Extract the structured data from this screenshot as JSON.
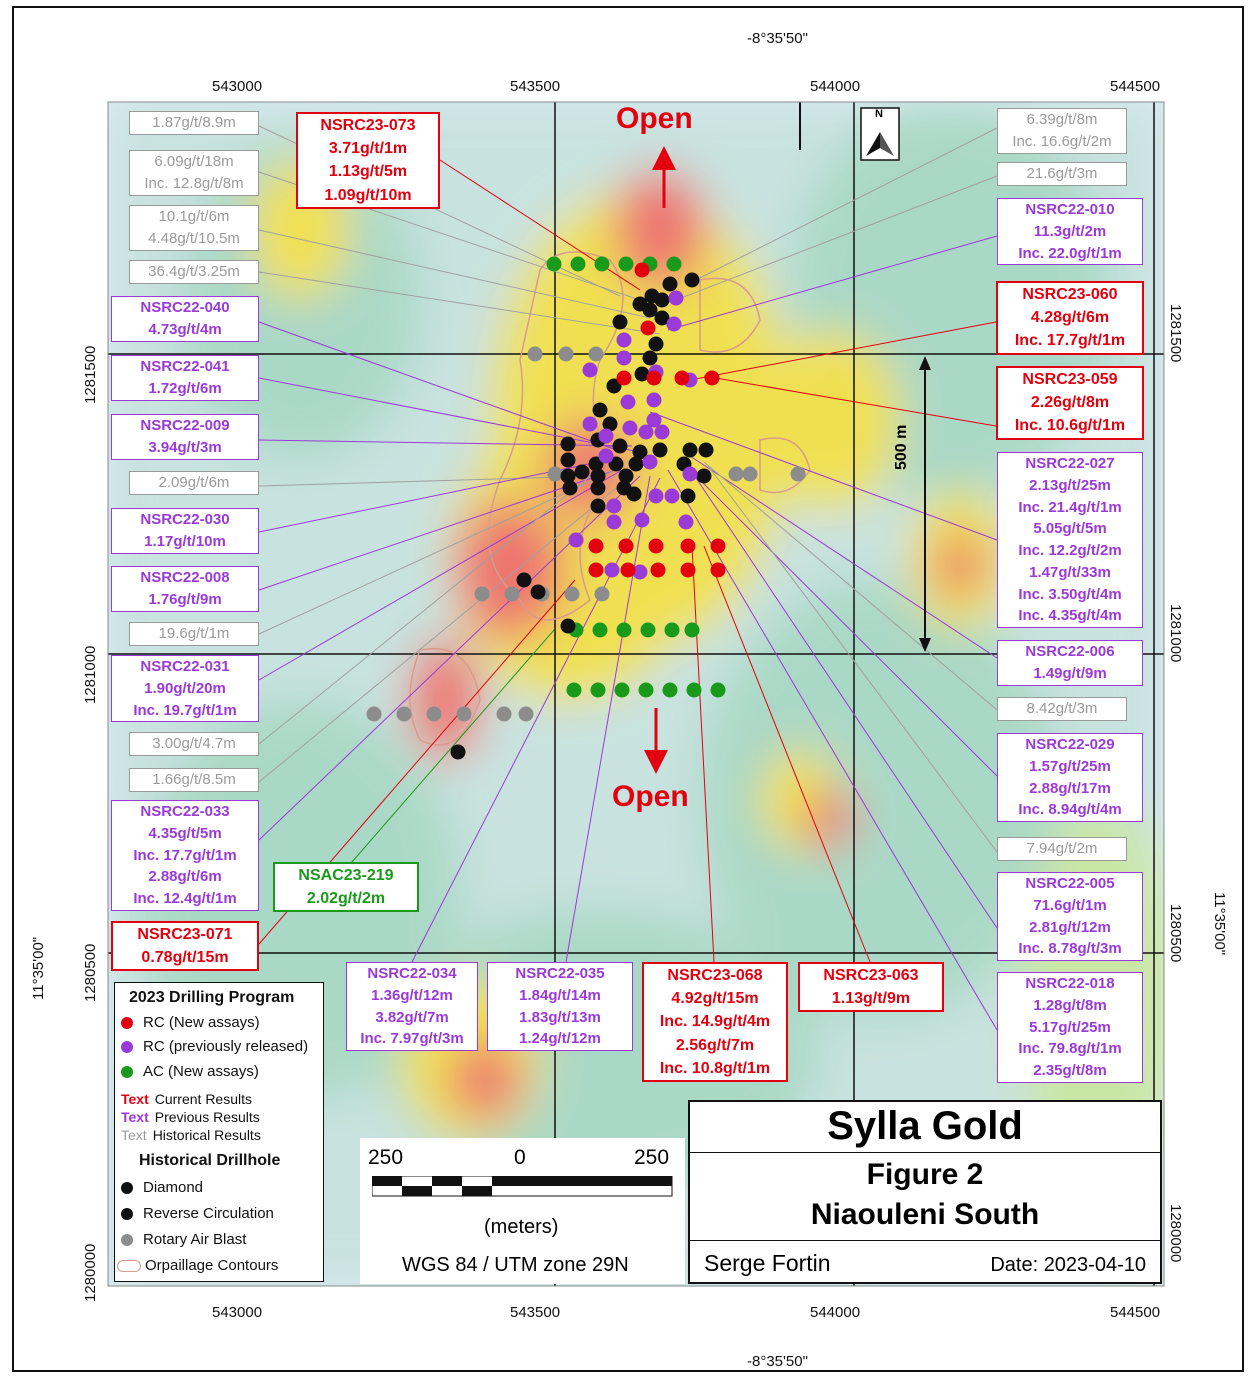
{
  "map": {
    "top_longitude": "-8°35'50\"",
    "bottom_longitude": "-8°35'50\"",
    "left_latitude": "11°35'00\"",
    "right_latitude": "11°35'00\"",
    "easting_ticks": [
      "543000",
      "543500",
      "544000",
      "544500"
    ],
    "northing_left": [
      "1281500",
      "1281000",
      "1280500",
      "1280000"
    ],
    "northing_right": [
      "1281500",
      "1281000",
      "1280500",
      "1280000"
    ],
    "open_north": "Open",
    "open_south": "Open",
    "distance_marker": "500 m",
    "north_arrow_letter": "N"
  },
  "labels": [
    {
      "id": "h1",
      "type": "hist",
      "lines": [
        "1.87g/t/8.9m"
      ]
    },
    {
      "id": "h2",
      "type": "hist",
      "lines": [
        "6.09g/t/18m",
        "Inc. 12.8g/t/8m"
      ]
    },
    {
      "id": "h3",
      "type": "hist",
      "lines": [
        "10.1g/t/6m",
        "4.48g/t/10.5m"
      ]
    },
    {
      "id": "h4",
      "type": "hist",
      "lines": [
        "36.4g/t/3.25m"
      ]
    },
    {
      "id": "c073",
      "type": "cur",
      "lines": [
        "NSRC23-073",
        "3.71g/t/1m",
        "1.13g/t/5m",
        "1.09g/t/10m"
      ]
    },
    {
      "id": "p040",
      "type": "prev",
      "lines": [
        "NSRC22-040",
        "4.73g/t/4m"
      ]
    },
    {
      "id": "p041",
      "type": "prev",
      "lines": [
        "NSRC22-041",
        "1.72g/t/6m"
      ]
    },
    {
      "id": "p009",
      "type": "prev",
      "lines": [
        "NSRC22-009",
        "3.94g/t/3m"
      ]
    },
    {
      "id": "h5",
      "type": "hist",
      "lines": [
        "2.09g/t/6m"
      ]
    },
    {
      "id": "p030",
      "type": "prev",
      "lines": [
        "NSRC22-030",
        "1.17g/t/10m"
      ]
    },
    {
      "id": "p008",
      "type": "prev",
      "lines": [
        "NSRC22-008",
        "1.76g/t/9m"
      ]
    },
    {
      "id": "h6",
      "type": "hist",
      "lines": [
        "19.6g/t/1m"
      ]
    },
    {
      "id": "p031",
      "type": "prev",
      "lines": [
        "NSRC22-031",
        "1.90g/t/20m",
        "Inc. 19.7g/t/1m"
      ]
    },
    {
      "id": "h7",
      "type": "hist",
      "lines": [
        "3.00g/t/4.7m"
      ]
    },
    {
      "id": "h8",
      "type": "hist",
      "lines": [
        "1.66g/t/8.5m"
      ]
    },
    {
      "id": "p033",
      "type": "prev",
      "lines": [
        "NSRC22-033",
        "4.35g/t/5m",
        "Inc. 17.7g/t/1m",
        "2.88g/t/6m",
        "Inc. 12.4g/t/1m"
      ]
    },
    {
      "id": "g219",
      "type": "green",
      "lines": [
        "NSAC23-219",
        "2.02g/t/2m"
      ]
    },
    {
      "id": "c071",
      "type": "cur",
      "lines": [
        "NSRC23-071",
        "0.78g/t/15m"
      ]
    },
    {
      "id": "p034",
      "type": "prev",
      "lines": [
        "NSRC22-034",
        "1.36g/t/12m",
        "3.82g/t/7m",
        "Inc. 7.97g/t/3m"
      ]
    },
    {
      "id": "p035",
      "type": "prev",
      "lines": [
        "NSRC22-035",
        "1.84g/t/14m",
        "1.83g/t/13m",
        "1.24g/t/12m"
      ]
    },
    {
      "id": "c068",
      "type": "cur",
      "lines": [
        "NSRC23-068",
        "4.92g/t/15m",
        "Inc. 14.9g/t/4m",
        "2.56g/t/7m",
        "Inc. 10.8g/t/1m"
      ]
    },
    {
      "id": "c063",
      "type": "cur",
      "lines": [
        "NSRC23-063",
        "1.13g/t/9m"
      ]
    },
    {
      "id": "h9",
      "type": "hist",
      "lines": [
        "6.39g/t/8m",
        "Inc. 16.6g/t/2m"
      ]
    },
    {
      "id": "h10",
      "type": "hist",
      "lines": [
        "21.6g/t/3m"
      ]
    },
    {
      "id": "p010",
      "type": "prev",
      "lines": [
        "NSRC22-010",
        "11.3g/t/2m",
        "Inc. 22.0g/t/1m"
      ]
    },
    {
      "id": "c060",
      "type": "cur",
      "lines": [
        "NSRC23-060",
        "4.28g/t/6m",
        "Inc. 17.7g/t/1m"
      ]
    },
    {
      "id": "c059",
      "type": "cur",
      "lines": [
        "NSRC23-059",
        "2.26g/t/8m",
        "Inc. 10.6g/t/1m"
      ]
    },
    {
      "id": "p027",
      "type": "prev",
      "lines": [
        "NSRC22-027",
        "2.13g/t/25m",
        "Inc. 21.4g/t/1m",
        "5.05g/t/5m",
        "Inc. 12.2g/t/2m",
        "1.47g/t/33m",
        "Inc. 3.50g/t/4m",
        "Inc. 4.35g/t/4m"
      ]
    },
    {
      "id": "p006",
      "type": "prev",
      "lines": [
        "NSRC22-006",
        "1.49g/t/9m"
      ]
    },
    {
      "id": "h11",
      "type": "hist",
      "lines": [
        "8.42g/t/3m"
      ]
    },
    {
      "id": "p029",
      "type": "prev",
      "lines": [
        "NSRC22-029",
        "1.57g/t/25m",
        "2.88g/t/17m",
        "Inc. 8.94g/t/4m"
      ]
    },
    {
      "id": "h12",
      "type": "hist",
      "lines": [
        "7.94g/t/2m"
      ]
    },
    {
      "id": "p005",
      "type": "prev",
      "lines": [
        "NSRC22-005",
        "71.6g/t/1m",
        "2.81g/t/12m",
        "Inc. 8.78g/t/3m"
      ]
    },
    {
      "id": "p018",
      "type": "prev",
      "lines": [
        "NSRC22-018",
        "1.28g/t/8m",
        "5.17g/t/25m",
        "Inc. 79.8g/t/1m",
        "2.35g/t/8m"
      ]
    }
  ],
  "legend": {
    "title": "2023 Drilling Program",
    "rc_new": "RC (New assays)",
    "rc_prev": "RC (previously released)",
    "ac_new": "AC (New assays)",
    "text_word": "Text",
    "current_results": "Current Results",
    "previous_results": "Previous Results",
    "historical_results": "Historical Results",
    "historical_title": "Historical Drillhole",
    "diamond": "Diamond",
    "reverse_circulation": "Reverse Circulation",
    "rotary_air_blast": "Rotary Air Blast",
    "orpaillage": "Orpaillage Contours",
    "colors": {
      "red": "#e3000f",
      "purple": "#9a3ad8",
      "green": "#1a9a1a",
      "black": "#111111",
      "grey": "#8c8c8c"
    }
  },
  "scale": {
    "left": "250",
    "center": "0",
    "right": "250",
    "unit": "(meters)",
    "projection": "WGS 84 / UTM zone 29N"
  },
  "title_block": {
    "company": "Sylla Gold",
    "figure": "Figure 2",
    "area": "Niaouleni South",
    "author": "Serge Fortin",
    "date": "Date: 2023-04-10"
  }
}
